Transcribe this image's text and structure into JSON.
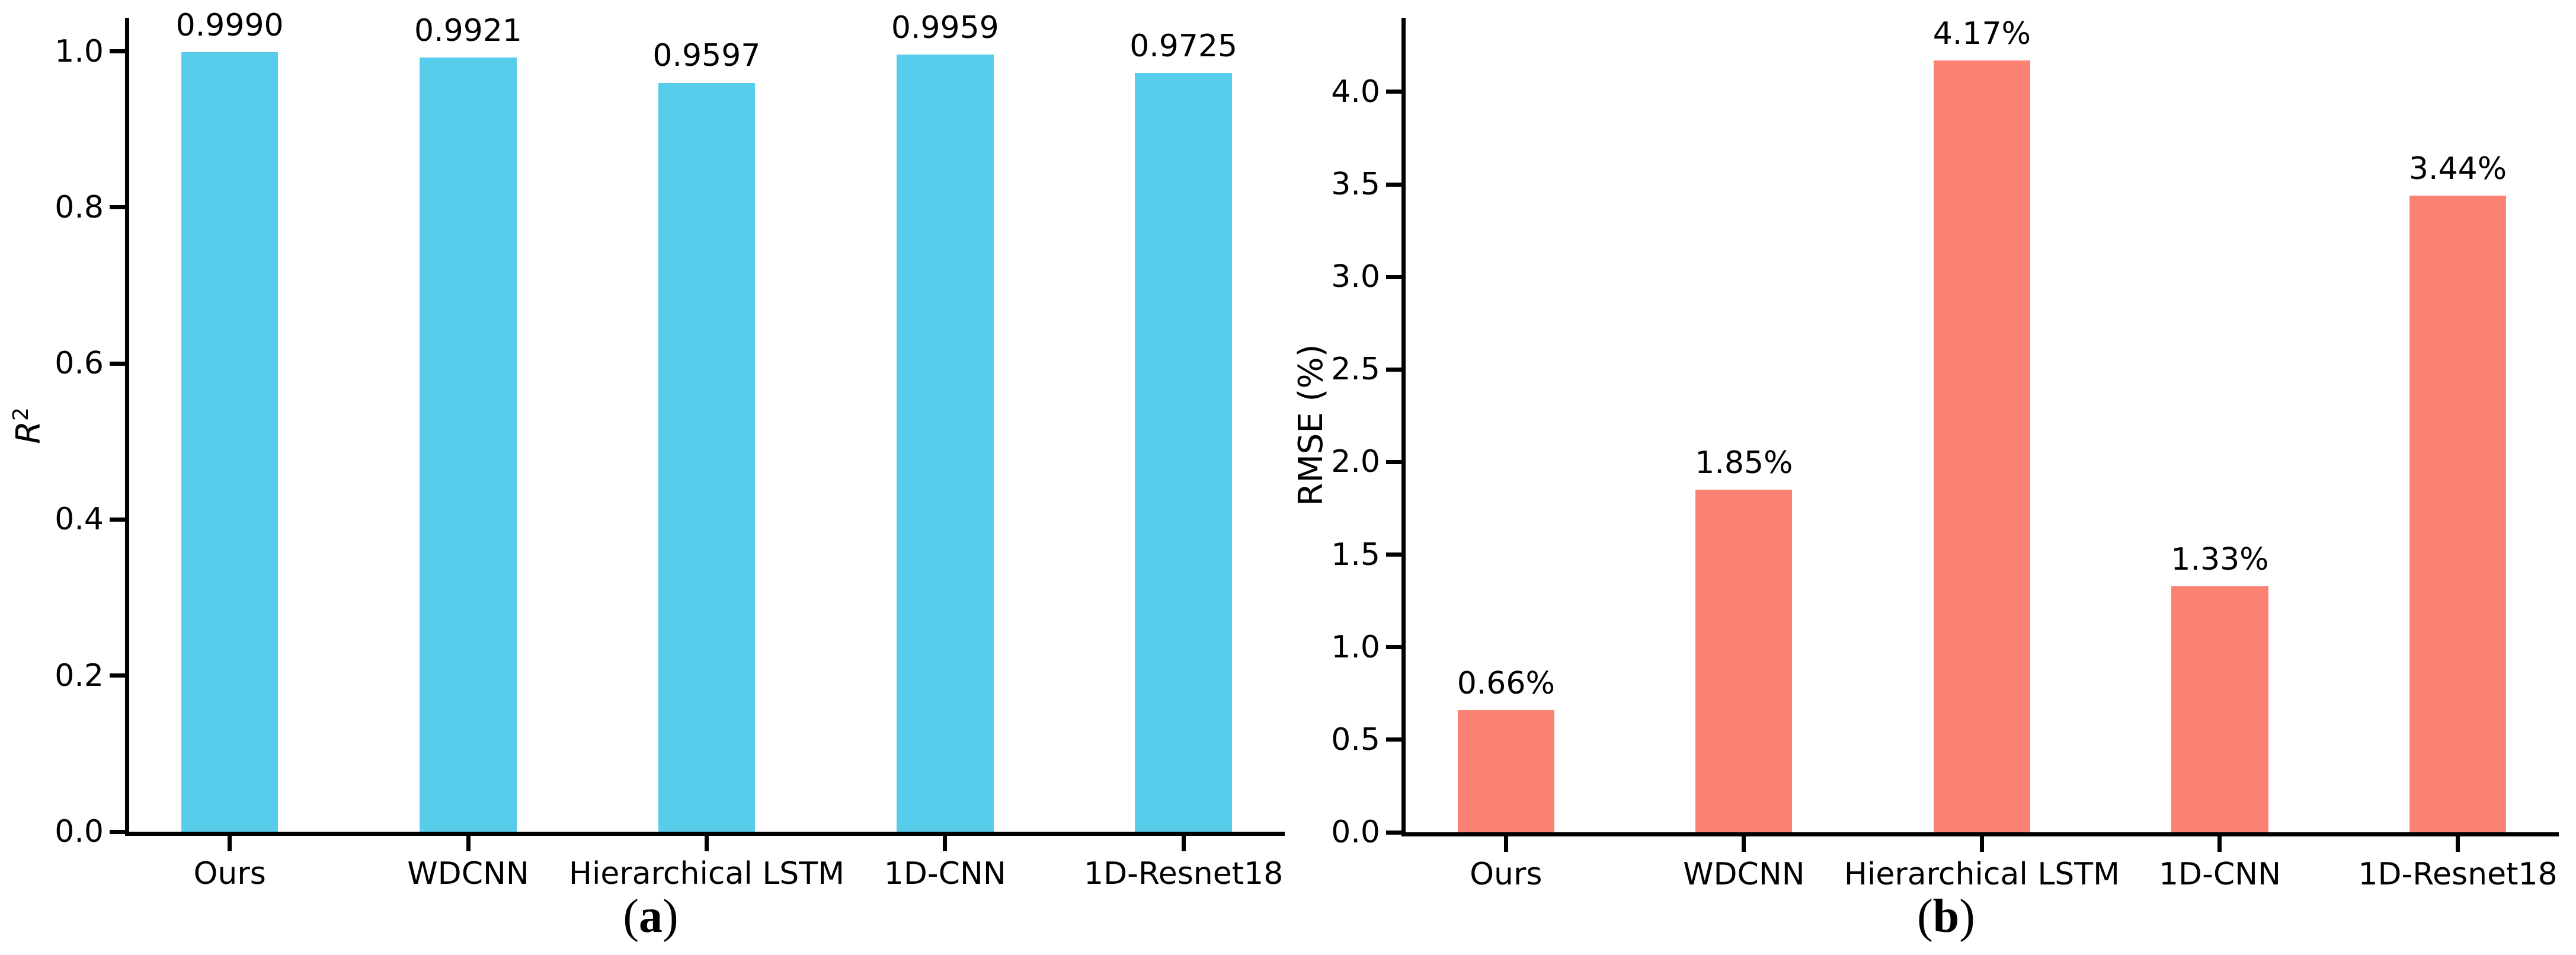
{
  "figure": {
    "background": "#ffffff",
    "axis_color": "#000000"
  },
  "chart_data": [
    {
      "id": "a",
      "type": "bar",
      "title": "",
      "xlabel": "",
      "ylabel": {
        "text": "R",
        "sup": "2"
      },
      "categories": [
        "Ours",
        "WDCNN",
        "Hierarchical LSTM",
        "1D-CNN",
        "1D-Resnet18"
      ],
      "values": [
        0.999,
        0.9921,
        0.9597,
        0.9959,
        0.9725
      ],
      "bar_labels": [
        "0.9990",
        "0.9921",
        "0.9597",
        "0.9959",
        "0.9725"
      ],
      "bar_color": "#58CDEB",
      "yticks": [
        0.0,
        0.2,
        0.4,
        0.6,
        0.8,
        1.0
      ],
      "ylim": [
        0,
        1.043
      ],
      "grid": false,
      "legend": "none",
      "caption_pre": "(",
      "caption_label": "a",
      "caption_post": ")"
    },
    {
      "id": "b",
      "type": "bar",
      "title": "",
      "xlabel": "",
      "ylabel": {
        "text": "RMSE (%)",
        "sup": ""
      },
      "categories": [
        "Ours",
        "WDCNN",
        "Hierarchical LSTM",
        "1D-CNN",
        "1D-Resnet18"
      ],
      "values": [
        0.66,
        1.85,
        4.17,
        1.33,
        3.44
      ],
      "bar_labels": [
        "0.66%",
        "1.85%",
        "4.17%",
        "1.33%",
        "3.44%"
      ],
      "bar_color": "#FC8274",
      "yticks": [
        0.0,
        0.5,
        1.0,
        1.5,
        2.0,
        2.5,
        3.0,
        3.5,
        4.0
      ],
      "ylim": [
        0,
        4.4
      ],
      "grid": false,
      "legend": "none",
      "caption_pre": "(",
      "caption_label": "b",
      "caption_post": ")"
    }
  ]
}
